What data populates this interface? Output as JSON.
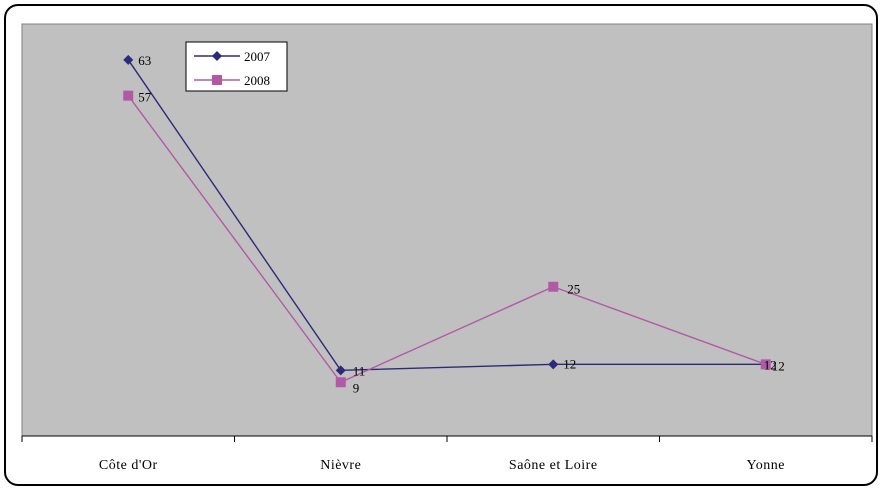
{
  "chart_data": {
    "type": "line",
    "categories": [
      "Côte d'Or",
      "Nièvre",
      "Saône et Loire",
      "Yonne"
    ],
    "series": [
      {
        "name": "2007",
        "values": [
          63,
          11,
          12,
          12
        ],
        "color": "#2e2a7a",
        "marker": "diamond"
      },
      {
        "name": "2008",
        "values": [
          57,
          9,
          25,
          12
        ],
        "color": "#b05aa6",
        "marker": "square"
      }
    ],
    "ylim": [
      0,
      69
    ],
    "grid": false,
    "legend_position": "top-left",
    "plot_background": "#c0c0c0"
  }
}
